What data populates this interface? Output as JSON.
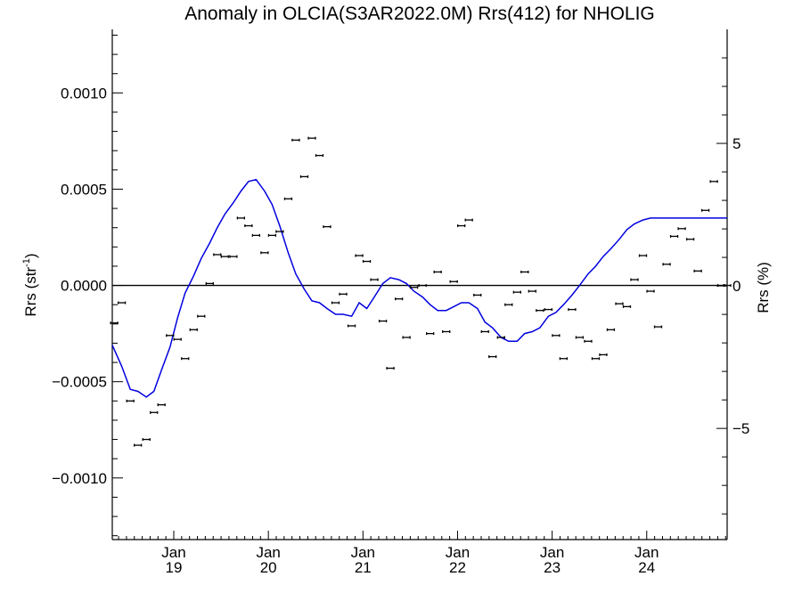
{
  "chart_data": {
    "type": "scatter",
    "title": "Anomaly in OLCIA(S3AR2022.0M) Rrs(412) for NHOLIG",
    "ylabel_left": "Rrs (str",
    "ylabel_left_sup": "-1",
    "ylabel_left_end": ")",
    "ylabel_right": "Rrs (%)",
    "grid": false,
    "xlim": [
      2018.35,
      2024.85
    ],
    "ylim": [
      -0.00132,
      0.00133
    ],
    "ylim_right": [
      -8.9,
      9.0
    ],
    "x_ticks": [
      {
        "x": 2019.0,
        "label_month": "Jan",
        "label_year": "19"
      },
      {
        "x": 2020.0,
        "label_month": "Jan",
        "label_year": "20"
      },
      {
        "x": 2021.0,
        "label_month": "Jan",
        "label_year": "21"
      },
      {
        "x": 2022.0,
        "label_month": "Jan",
        "label_year": "22"
      },
      {
        "x": 2023.0,
        "label_month": "Jan",
        "label_year": "23"
      },
      {
        "x": 2024.0,
        "label_month": "Jan",
        "label_year": "24"
      }
    ],
    "y_ticks_left": [
      {
        "v": 0.001,
        "label": "0.0010"
      },
      {
        "v": 0.0005,
        "label": "0.0005"
      },
      {
        "v": 0.0,
        "label": "0.0000"
      },
      {
        "v": -0.0005,
        "label": "−0.0005"
      },
      {
        "v": -0.001,
        "label": "−0.0010"
      }
    ],
    "y_ticks_right": [
      {
        "v": 5,
        "label": "5"
      },
      {
        "v": 0,
        "label": "0"
      },
      {
        "v": -5,
        "label": "−5"
      }
    ],
    "reference_line": 0,
    "series": [
      {
        "kind": "points",
        "x": [
          2018.37,
          2018.45,
          2018.54,
          2018.62,
          2018.71,
          2018.79,
          2018.87,
          2018.96,
          2019.04,
          2019.12,
          2019.21,
          2019.29,
          2019.38,
          2019.46,
          2019.54,
          2019.63,
          2019.71,
          2019.79,
          2019.87,
          2019.96,
          2020.04,
          2020.12,
          2020.21,
          2020.29,
          2020.38,
          2020.46,
          2020.54,
          2020.62,
          2020.71,
          2020.79,
          2020.88,
          2020.96,
          2021.04,
          2021.12,
          2021.21,
          2021.29,
          2021.38,
          2021.46,
          2021.54,
          2021.63,
          2021.71,
          2021.79,
          2021.88,
          2021.96,
          2022.04,
          2022.12,
          2022.21,
          2022.29,
          2022.37,
          2022.46,
          2022.54,
          2022.63,
          2022.71,
          2022.79,
          2022.87,
          2022.96,
          2023.04,
          2023.12,
          2023.21,
          2023.29,
          2023.38,
          2023.46,
          2023.54,
          2023.62,
          2023.71,
          2023.79,
          2023.87,
          2023.96,
          2024.04,
          2024.12,
          2024.21,
          2024.29,
          2024.37,
          2024.46,
          2024.54,
          2024.62,
          2024.71,
          2024.79,
          2024.85
        ],
        "y": [
          -0.000195,
          -9e-05,
          -0.0006,
          -0.00083,
          -0.0008,
          -0.00066,
          -0.00062,
          -0.00026,
          -0.00028,
          -0.00038,
          -0.00023,
          -0.00016,
          1e-05,
          0.00016,
          0.00015,
          0.00015,
          0.00035,
          0.00031,
          0.00026,
          0.00017,
          0.00026,
          0.00028,
          0.00045,
          0.000755,
          0.000565,
          0.000765,
          0.000675,
          0.000305,
          -9e-05,
          -4.5e-05,
          -0.00021,
          0.000155,
          0.000125,
          3e-05,
          -0.000185,
          -0.00043,
          -7e-05,
          -0.00027,
          -1e-05,
          0.0,
          -0.00025,
          7e-05,
          -0.00024,
          2e-05,
          0.00031,
          0.00034,
          -5e-05,
          -0.00024,
          -0.00037,
          -0.00027,
          -0.0001,
          -3.5e-05,
          7e-05,
          -3e-05,
          -0.00013,
          -0.000125,
          -0.00026,
          -0.00038,
          -0.000125,
          -0.00027,
          -0.00029,
          -0.00038,
          -0.00036,
          -0.00023,
          -9.5e-05,
          -0.00011,
          3e-05,
          0.000155,
          -3e-05,
          -0.000215,
          0.00011,
          0.000255,
          0.000295,
          0.00024,
          7.5e-05,
          0.00039,
          0.00054,
          0.0,
          0.0
        ]
      },
      {
        "kind": "line",
        "color": "#0000e0",
        "x": [
          2018.35,
          2018.45,
          2018.54,
          2018.62,
          2018.71,
          2018.79,
          2018.87,
          2018.96,
          2019.04,
          2019.12,
          2019.21,
          2019.29,
          2019.38,
          2019.46,
          2019.54,
          2019.63,
          2019.71,
          2019.79,
          2019.87,
          2019.96,
          2020.04,
          2020.12,
          2020.21,
          2020.29,
          2020.38,
          2020.46,
          2020.54,
          2020.62,
          2020.71,
          2020.79,
          2020.88,
          2020.96,
          2021.04,
          2021.12,
          2021.21,
          2021.29,
          2021.38,
          2021.46,
          2021.54,
          2021.63,
          2021.71,
          2021.79,
          2021.88,
          2021.96,
          2022.04,
          2022.12,
          2022.21,
          2022.29,
          2022.37,
          2022.46,
          2022.54,
          2022.63,
          2022.71,
          2022.79,
          2022.87,
          2022.96,
          2023.04,
          2023.12,
          2023.21,
          2023.29,
          2023.38,
          2023.46,
          2023.54,
          2023.62,
          2023.71,
          2023.79,
          2023.87,
          2023.96,
          2024.04,
          2024.12,
          2024.21,
          2024.29,
          2024.37,
          2024.46,
          2024.54,
          2024.62,
          2024.71,
          2024.79,
          2024.85
        ],
        "y": [
          -0.00031,
          -0.00042,
          -0.00054,
          -0.00055,
          -0.00058,
          -0.00055,
          -0.00044,
          -0.00032,
          -0.00017,
          -4e-05,
          5e-05,
          0.00014,
          0.00022,
          0.0003,
          0.00037,
          0.00043,
          0.00049,
          0.00054,
          0.00055,
          0.00049,
          0.00042,
          0.00031,
          0.00017,
          6e-05,
          -2e-05,
          -8e-05,
          -9e-05,
          -0.00012,
          -0.00015,
          -0.00015,
          -0.00016,
          -9e-05,
          -0.00012,
          -6e-05,
          1e-05,
          4e-05,
          3e-05,
          1e-05,
          -3e-05,
          -6e-05,
          -0.0001,
          -0.00013,
          -0.00013,
          -0.00011,
          -9e-05,
          -9e-05,
          -0.00012,
          -0.00019,
          -0.00022,
          -0.00027,
          -0.00029,
          -0.00029,
          -0.00025,
          -0.00024,
          -0.00022,
          -0.00016,
          -0.00014,
          -0.0001,
          -5e-05,
          0.0,
          6e-05,
          0.0001,
          0.00015,
          0.00019,
          0.00024,
          0.00029,
          0.00032,
          0.00034,
          0.00035,
          0.00035,
          0.00035,
          0.00035,
          0.00035,
          0.00035,
          0.00035,
          0.00035,
          0.00035,
          0.00035,
          0.00035
        ]
      }
    ]
  }
}
